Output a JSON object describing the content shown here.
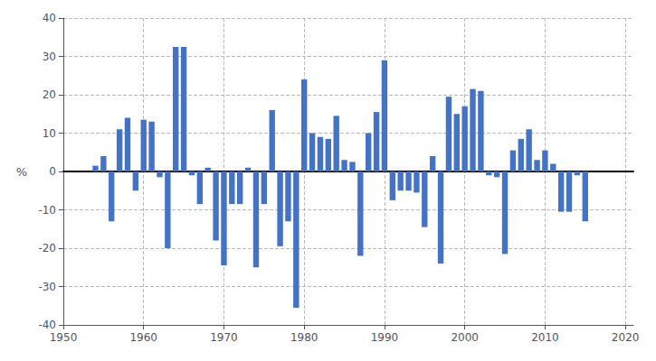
{
  "chart_data": {
    "type": "bar",
    "x": [
      1954,
      1955,
      1956,
      1957,
      1958,
      1959,
      1960,
      1961,
      1962,
      1963,
      1964,
      1965,
      1966,
      1967,
      1968,
      1969,
      1970,
      1971,
      1972,
      1973,
      1974,
      1975,
      1976,
      1977,
      1978,
      1979,
      1980,
      1981,
      1982,
      1983,
      1984,
      1985,
      1986,
      1987,
      1988,
      1989,
      1990,
      1991,
      1992,
      1993,
      1994,
      1995,
      1996,
      1997,
      1998,
      1999,
      2000,
      2001,
      2002,
      2003,
      2004,
      2005,
      2006,
      2007,
      2008,
      2009,
      2010,
      2011,
      2012,
      2013,
      2014,
      2015
    ],
    "values": [
      1.5,
      4.0,
      -13.0,
      11.0,
      14.0,
      -5.0,
      13.5,
      13.0,
      -1.5,
      -20.0,
      32.5,
      32.5,
      -1.0,
      -8.5,
      1.0,
      -18.0,
      -24.5,
      -8.5,
      -8.5,
      1.0,
      -25.0,
      -8.5,
      16.0,
      -19.5,
      -13.0,
      -35.5,
      24.0,
      10.0,
      9.0,
      8.5,
      14.5,
      3.0,
      2.5,
      -22.0,
      10.0,
      15.5,
      29.0,
      -7.5,
      -5.0,
      -5.0,
      -5.5,
      -14.5,
      4.0,
      -24.0,
      19.5,
      15.0,
      17.0,
      21.5,
      21.0,
      -1.0,
      -1.5,
      -21.5,
      5.5,
      8.5,
      11.0,
      3.0,
      5.5,
      2.0,
      -10.5,
      -10.5,
      -1.0,
      -13.0
    ],
    "color": "#4472C4",
    "ylabel": "%",
    "xlim": [
      1950,
      2021
    ],
    "xticks": [
      1950,
      1960,
      1970,
      1980,
      1990,
      2000,
      2010,
      2020
    ],
    "ylim": [
      -40,
      40
    ],
    "yticks": [
      -40,
      -30,
      -20,
      -10,
      0,
      10,
      20,
      30,
      40
    ],
    "grid": true
  }
}
